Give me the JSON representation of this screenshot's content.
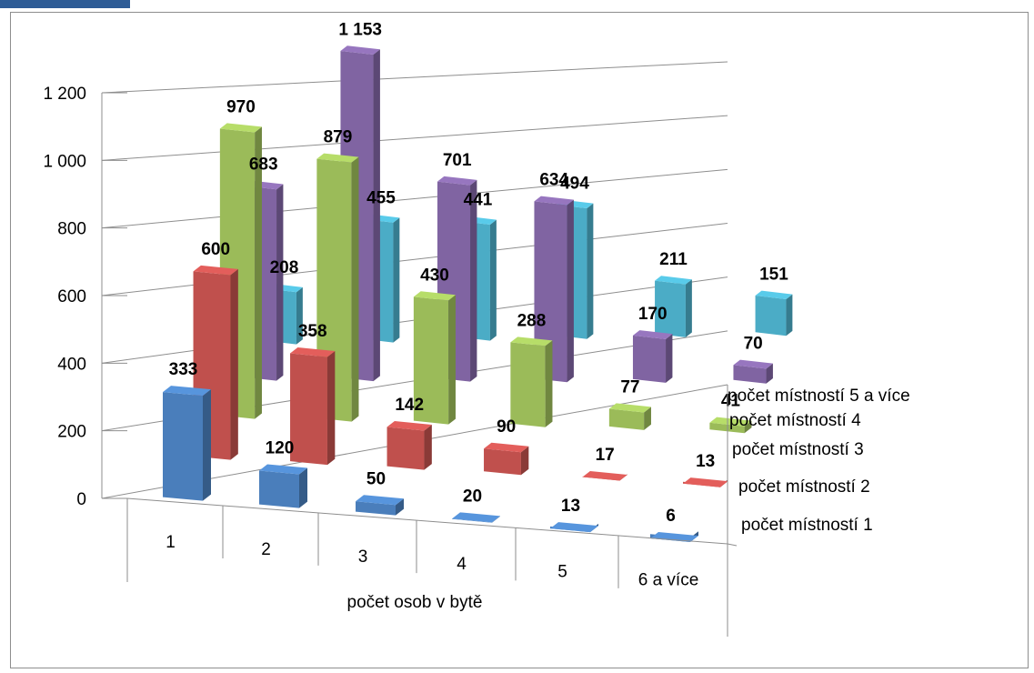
{
  "chart_data": {
    "type": "bar",
    "title": "",
    "xlabel": "počet osob v bytě",
    "ylabel": "",
    "ylim": [
      0,
      1200
    ],
    "yticks": [
      "0",
      "200",
      "400",
      "600",
      "800",
      "1 000",
      "1 200"
    ],
    "categories": [
      "1",
      "2",
      "3",
      "4",
      "5",
      "6 a více"
    ],
    "series": [
      {
        "name": "počet místností 1",
        "color": "#4a7ebb",
        "values": [
          333,
          120,
          50,
          20,
          13,
          6
        ],
        "labels": [
          "333",
          "120",
          "50",
          "20",
          "13",
          "6"
        ]
      },
      {
        "name": "počet místností 2",
        "color": "#c0504d",
        "values": [
          600,
          358,
          142,
          90,
          17,
          13
        ],
        "labels": [
          "600",
          "358",
          "142",
          "90",
          "17",
          "13"
        ]
      },
      {
        "name": "počet místností 3",
        "color": "#9bbb59",
        "values": [
          970,
          879,
          430,
          288,
          77,
          41
        ],
        "labels": [
          "970",
          "879",
          "430",
          "288",
          "77",
          "41"
        ]
      },
      {
        "name": "počet místností 4",
        "color": "#8064a2",
        "values": [
          683,
          1153,
          701,
          634,
          170,
          70
        ],
        "labels": [
          "683",
          "1 153",
          "701",
          "634",
          "170",
          "70"
        ]
      },
      {
        "name": "počet místností 5 a více",
        "color": "#4bacc6",
        "values": [
          208,
          455,
          441,
          494,
          211,
          151
        ],
        "labels": [
          "208",
          "455",
          "441",
          "494",
          "211",
          "151"
        ]
      }
    ],
    "grid": true,
    "view": "3d-column"
  }
}
